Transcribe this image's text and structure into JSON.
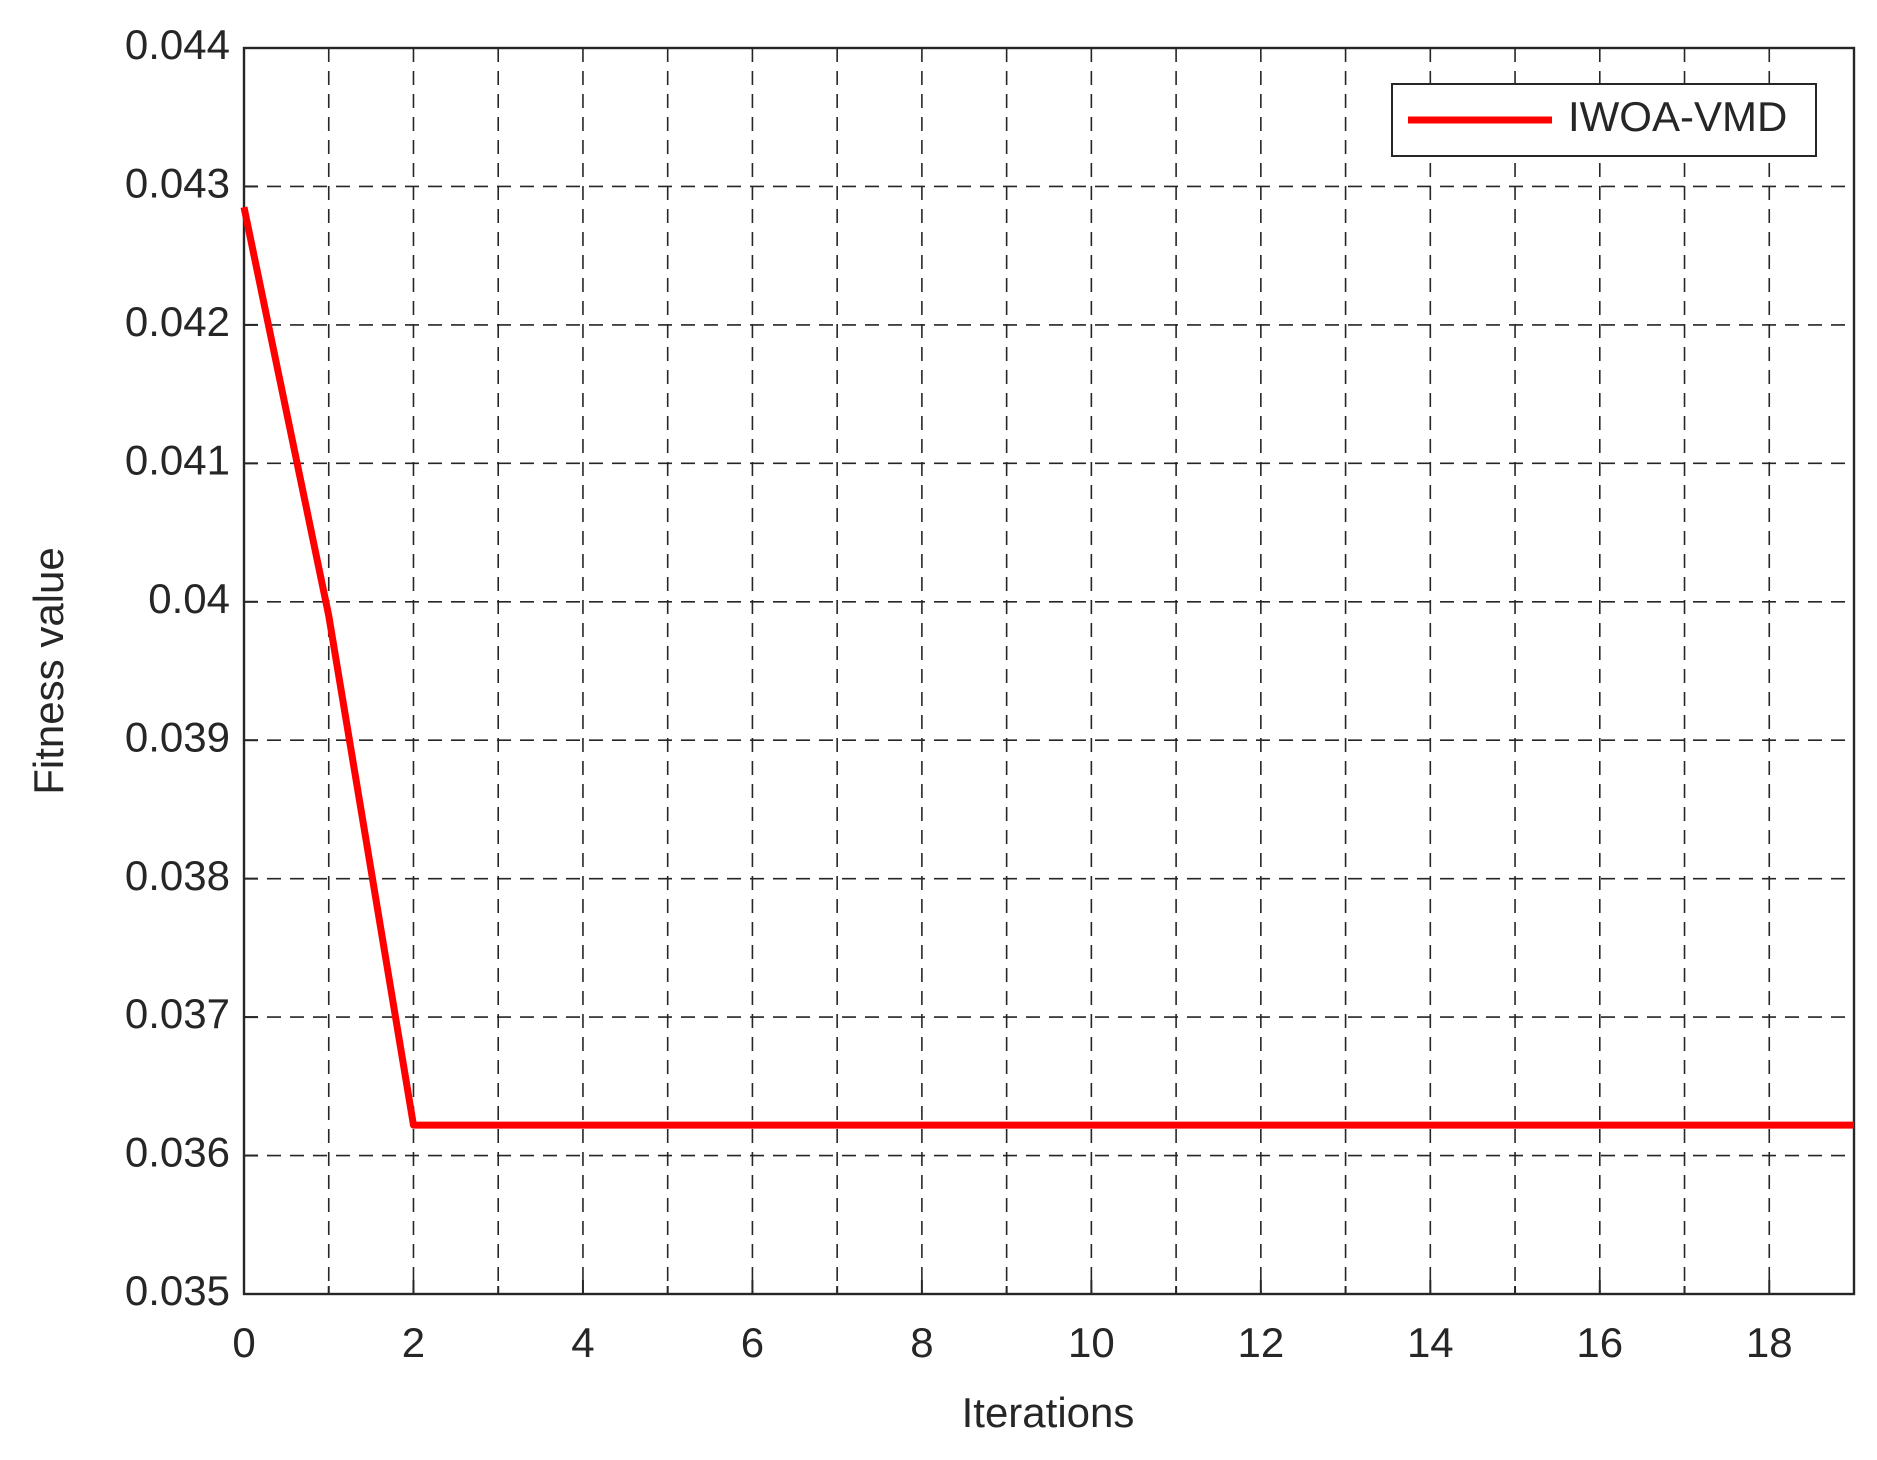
{
  "chart_data": {
    "type": "line",
    "x_label": "Iterations",
    "y_label": "Fitness value",
    "x": [
      0,
      1,
      2,
      3,
      4,
      5,
      6,
      7,
      8,
      9,
      10,
      11,
      12,
      13,
      14,
      15,
      16,
      17,
      18,
      19
    ],
    "series": [
      {
        "name": "IWOA-VMD",
        "color": "#ff0000",
        "values": [
          0.04285,
          0.0399,
          0.03622,
          0.03622,
          0.03622,
          0.03622,
          0.03622,
          0.03622,
          0.03622,
          0.03622,
          0.03622,
          0.03622,
          0.03622,
          0.03622,
          0.03622,
          0.03622,
          0.03622,
          0.03622,
          0.03622,
          0.03622
        ]
      }
    ],
    "xlim": [
      0,
      19
    ],
    "xticks": [
      0,
      2,
      4,
      6,
      8,
      10,
      12,
      14,
      16,
      18
    ],
    "x_minor_ticks": [
      1,
      3,
      5,
      7,
      9,
      11,
      13,
      15,
      17
    ],
    "ylim": [
      0.035,
      0.044
    ],
    "yticks": [
      0.035,
      0.036,
      0.037,
      0.038,
      0.039,
      0.04,
      0.041,
      0.042,
      0.043,
      0.044
    ],
    "grid": true,
    "legend": "upper right"
  }
}
